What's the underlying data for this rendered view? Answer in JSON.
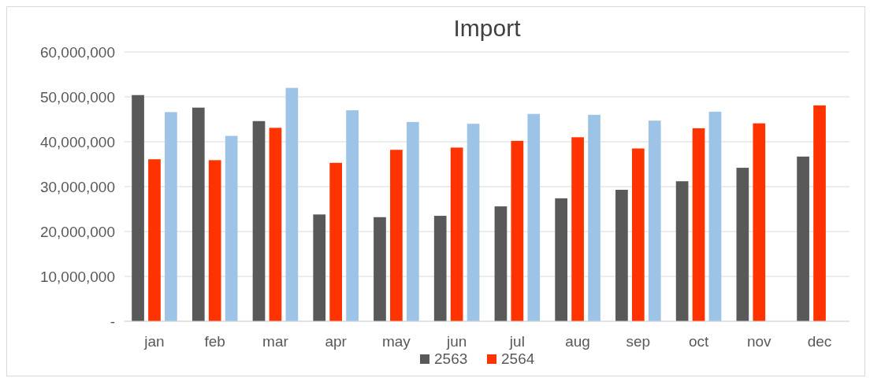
{
  "chart_data": {
    "type": "bar",
    "title": "Import",
    "categories": [
      "jan",
      "feb",
      "mar",
      "apr",
      "may",
      "jun",
      "jul",
      "aug",
      "sep",
      "oct",
      "nov",
      "dec"
    ],
    "series": [
      {
        "name": "2563",
        "color": "#595959",
        "values": [
          50400000,
          47600000,
          44600000,
          23800000,
          23200000,
          23500000,
          25600000,
          27400000,
          29300000,
          31200000,
          34200000,
          36700000
        ]
      },
      {
        "name": "2564",
        "color": "#ff3300",
        "values": [
          36100000,
          35900000,
          43100000,
          35300000,
          38200000,
          38700000,
          40200000,
          41000000,
          38500000,
          43000000,
          44100000,
          48100000
        ]
      },
      {
        "color": "#9dc3e6",
        "values": [
          46600000,
          41300000,
          52000000,
          47000000,
          44400000,
          44000000,
          46200000,
          46000000,
          44700000,
          46700000,
          null,
          null
        ]
      }
    ],
    "ylim": [
      0,
      60000000
    ],
    "yticks": [
      {
        "value": 0,
        "label": "-"
      },
      {
        "value": 10000000,
        "label": "10,000,000"
      },
      {
        "value": 20000000,
        "label": "20,000,000"
      },
      {
        "value": 30000000,
        "label": "30,000,000"
      },
      {
        "value": 40000000,
        "label": "40,000,000"
      },
      {
        "value": 50000000,
        "label": "50,000,000"
      },
      {
        "value": 60000000,
        "label": "60,000,000"
      }
    ],
    "grid": "y",
    "legend": "bottom"
  }
}
